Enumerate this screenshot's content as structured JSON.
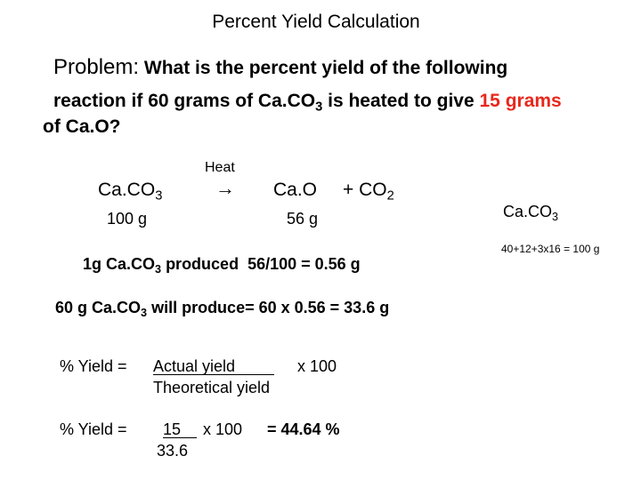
{
  "title": "Percent Yield Calculation",
  "problem": {
    "label": "Problem:",
    "text_1": "What is the percent yield of the following",
    "text_2": "reaction if 60 grams of Ca.CO",
    "sub_2": "3",
    "text_3": "is heated to give",
    "highlight": "15 grams",
    "text_4": "of Ca.O?"
  },
  "equation": {
    "heat": "Heat",
    "reactant": "Ca.CO",
    "reactant_sub": "3",
    "arrow": "→",
    "product": "Ca.O",
    "plus": "+ CO",
    "plus_sub": "2",
    "reactant_mass": "100 g",
    "product_mass": "56 g"
  },
  "side_note": {
    "formula": "Ca.CO",
    "formula_sub": "3",
    "calc": "40+12+3x16 = 100 g"
  },
  "steps": [
    {
      "a": "1g Ca.CO",
      "sub": "3",
      "b": "produced  56/100 = 0.56 g"
    },
    {
      "a": "60 g Ca.CO",
      "sub": "3",
      "b": "will produce= 60 x 0.56 = 33.6 g"
    }
  ],
  "formula": {
    "label": "% Yield =",
    "numerator": "Actual yield",
    "times": "x 100",
    "denominator": "Theoretical yield"
  },
  "result": {
    "label": "% Yield =",
    "numerator": "15",
    "times": "x 100",
    "denominator": "33.6",
    "answer": "= 44.64 %"
  }
}
